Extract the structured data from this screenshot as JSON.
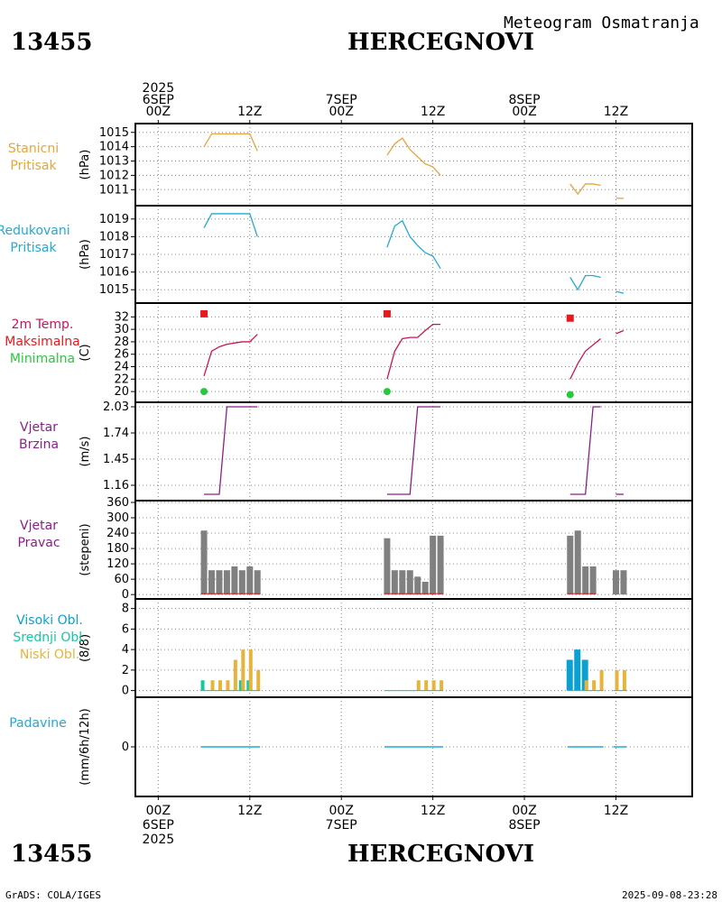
{
  "header": {
    "station_id": "13455",
    "station_name": "HERCEGNOVI",
    "title": "Meteogram Osmatranja"
  },
  "footer": {
    "credit": "GrADS: COLA/IGES",
    "timestamp": "2025-09-08-23:28"
  },
  "time_axis": {
    "top_labels": [
      {
        "lines": [
          "2025",
          "6SEP",
          "00Z"
        ],
        "hour": 0
      },
      {
        "lines": [
          "12Z"
        ],
        "hour": 12
      },
      {
        "lines": [
          "7SEP",
          "00Z"
        ],
        "hour": 24
      },
      {
        "lines": [
          "12Z"
        ],
        "hour": 36
      },
      {
        "lines": [
          "8SEP",
          "00Z"
        ],
        "hour": 48
      },
      {
        "lines": [
          "12Z"
        ],
        "hour": 60
      }
    ],
    "bottom_labels": [
      {
        "lines": [
          "00Z",
          "6SEP",
          "2025"
        ],
        "hour": 0
      },
      {
        "lines": [
          "12Z"
        ],
        "hour": 12
      },
      {
        "lines": [
          "00Z",
          "7SEP"
        ],
        "hour": 24
      },
      {
        "lines": [
          "12Z"
        ],
        "hour": 36
      },
      {
        "lines": [
          "00Z",
          "8SEP"
        ],
        "hour": 48
      },
      {
        "lines": [
          "12Z"
        ],
        "hour": 60
      }
    ],
    "range_hours": [
      -3,
      70
    ]
  },
  "colors": {
    "pressure": "#e6a53c",
    "reduced": "#22a9d6",
    "temp": "#c8145a",
    "max": "#e8191e",
    "min": "#28c83c",
    "wind": "#8c1e8c",
    "bars": "#808080",
    "high_cloud": "#0aa0d2",
    "mid_cloud": "#14c8a0",
    "low_cloud": "#e6b43c",
    "precip": "#22a9d6",
    "grid": "#888888"
  },
  "chart_data": [
    {
      "type": "line",
      "name": "pressure",
      "label": [
        "Stanicni",
        "Pritisak"
      ],
      "unit": "(hPa)",
      "ylim": [
        1010.2,
        1015.3
      ],
      "yticks": [
        1011,
        1012,
        1013,
        1014,
        1015
      ],
      "series": [
        {
          "name": "Stanicni Pritisak",
          "segments": [
            [
              [
                6,
                1014.0
              ],
              [
                7,
                1014.9
              ],
              [
                8,
                1014.9
              ],
              [
                9,
                1014.9
              ],
              [
                10,
                1014.9
              ],
              [
                11,
                1014.9
              ],
              [
                12,
                1014.9
              ],
              [
                13,
                1013.7
              ]
            ],
            [
              [
                30,
                1013.4
              ],
              [
                31,
                1014.2
              ],
              [
                32,
                1014.6
              ],
              [
                33,
                1013.8
              ],
              [
                34,
                1013.3
              ],
              [
                35,
                1012.8
              ],
              [
                36,
                1012.6
              ],
              [
                37,
                1012.0
              ]
            ],
            [
              [
                54,
                1011.4
              ],
              [
                55,
                1010.7
              ],
              [
                56,
                1011.4
              ],
              [
                57,
                1011.4
              ],
              [
                58,
                1011.3
              ]
            ],
            [
              [
                60,
                1010.4
              ],
              [
                61,
                1010.4
              ]
            ]
          ]
        }
      ]
    },
    {
      "type": "line",
      "name": "reduced_pressure",
      "label": [
        "Redukovani",
        "Pritisak"
      ],
      "unit": "(hPa)",
      "ylim": [
        1014.5,
        1019.5
      ],
      "yticks": [
        1015,
        1016,
        1017,
        1018,
        1019
      ],
      "series": [
        {
          "name": "Redukovani Pritisak",
          "segments": [
            [
              [
                6,
                1018.5
              ],
              [
                7,
                1019.3
              ],
              [
                8,
                1019.3
              ],
              [
                9,
                1019.3
              ],
              [
                10,
                1019.3
              ],
              [
                11,
                1019.3
              ],
              [
                12,
                1019.3
              ],
              [
                13,
                1018.0
              ]
            ],
            [
              [
                30,
                1017.4
              ],
              [
                31,
                1018.6
              ],
              [
                32,
                1018.9
              ],
              [
                33,
                1018.0
              ],
              [
                34,
                1017.5
              ],
              [
                35,
                1017.1
              ],
              [
                36,
                1016.9
              ],
              [
                37,
                1016.2
              ]
            ],
            [
              [
                54,
                1015.7
              ],
              [
                55,
                1015.0
              ],
              [
                56,
                1015.8
              ],
              [
                57,
                1015.8
              ],
              [
                58,
                1015.7
              ]
            ],
            [
              [
                60,
                1014.9
              ],
              [
                61,
                1014.8
              ]
            ]
          ]
        }
      ]
    },
    {
      "type": "line",
      "name": "temperature",
      "label": [
        "2m Temp.",
        "Maksimalna",
        "Minimalna"
      ],
      "unit": "(C)",
      "ylim": [
        19.0,
        33.5
      ],
      "yticks": [
        20,
        22,
        24,
        26,
        28,
        30,
        32
      ],
      "series": [
        {
          "name": "2m Temp.",
          "segments": [
            [
              [
                6,
                22.5
              ],
              [
                7,
                26.5
              ],
              [
                8,
                27.2
              ],
              [
                9,
                27.6
              ],
              [
                10,
                27.8
              ],
              [
                11,
                28.0
              ],
              [
                12,
                28.0
              ],
              [
                13,
                29.2
              ]
            ],
            [
              [
                30,
                22.0
              ],
              [
                31,
                26.5
              ],
              [
                32,
                28.5
              ],
              [
                33,
                28.7
              ],
              [
                34,
                28.7
              ],
              [
                35,
                29.8
              ],
              [
                36,
                30.8
              ],
              [
                37,
                30.8
              ]
            ],
            [
              [
                54,
                22.0
              ],
              [
                55,
                24.5
              ],
              [
                56,
                26.5
              ],
              [
                57,
                27.5
              ],
              [
                58,
                28.5
              ]
            ],
            [
              [
                60,
                29.3
              ],
              [
                61,
                29.8
              ]
            ]
          ]
        },
        {
          "name": "Maksimalna",
          "points": [
            [
              6,
              32.5
            ],
            [
              30,
              32.5
            ],
            [
              54,
              31.8
            ]
          ]
        },
        {
          "name": "Minimalna",
          "points": [
            [
              6,
              20.0
            ],
            [
              30,
              20.0
            ],
            [
              54,
              19.5
            ]
          ]
        }
      ]
    },
    {
      "type": "line",
      "name": "wind_speed",
      "label": [
        "Vjetar",
        "Brzina"
      ],
      "unit": "(m/s)",
      "ylim": [
        1.06,
        2.03
      ],
      "yticks": [
        1.16,
        1.45,
        1.74,
        2.03
      ],
      "tick_labels": [
        "1.16",
        "1.45",
        "1.74",
        "2.03"
      ],
      "series": [
        {
          "name": "Vjetar Brzina",
          "segments": [
            [
              [
                6,
                1.06
              ],
              [
                8,
                1.06
              ],
              [
                9,
                2.03
              ],
              [
                10,
                2.03
              ],
              [
                13,
                2.03
              ]
            ],
            [
              [
                30,
                1.06
              ],
              [
                33,
                1.06
              ],
              [
                34,
                2.03
              ],
              [
                37,
                2.03
              ]
            ],
            [
              [
                54,
                1.06
              ],
              [
                56,
                1.06
              ],
              [
                57,
                2.03
              ],
              [
                58,
                2.03
              ]
            ],
            [
              [
                60,
                1.06
              ],
              [
                61,
                1.06
              ]
            ]
          ]
        }
      ]
    },
    {
      "type": "bar",
      "name": "wind_direction",
      "label": [
        "Vjetar",
        "Pravac"
      ],
      "unit": "(stepeni)",
      "ylim": [
        -10,
        360
      ],
      "yticks": [
        0,
        60,
        120,
        180,
        240,
        300,
        360
      ],
      "x": [
        6,
        7,
        8,
        9,
        10,
        11,
        12,
        13,
        30,
        31,
        32,
        33,
        34,
        35,
        36,
        37,
        54,
        55,
        56,
        57,
        60,
        61
      ],
      "values": [
        250,
        95,
        95,
        95,
        110,
        95,
        110,
        95,
        220,
        95,
        95,
        95,
        70,
        50,
        230,
        230,
        230,
        250,
        110,
        110,
        95,
        95
      ]
    },
    {
      "type": "bar",
      "name": "clouds",
      "label": [
        "Visoki Obl.",
        "Srednji Obl.",
        "Niski Obl."
      ],
      "unit": "(8/8)",
      "ylim": [
        -0.3,
        8.5
      ],
      "yticks": [
        0,
        2,
        4,
        6,
        8
      ],
      "series": [
        {
          "name": "Visoki Obl.",
          "x": [
            54,
            55,
            56
          ],
          "values": [
            3,
            4,
            3
          ]
        },
        {
          "name": "Srednji Obl.",
          "x": [
            6,
            11,
            12
          ],
          "values": [
            1,
            1,
            1
          ]
        },
        {
          "name": "Niski Obl.",
          "x": [
            7,
            8,
            9,
            10,
            11,
            12,
            13,
            34,
            35,
            36,
            37,
            56,
            57,
            58,
            60,
            61
          ],
          "values": [
            1,
            1,
            1,
            3,
            4,
            4,
            2,
            1,
            1,
            1,
            1,
            1,
            1,
            2,
            2,
            2
          ]
        }
      ]
    },
    {
      "type": "bar",
      "name": "precipitation",
      "label": [
        "Padavine"
      ],
      "unit": "(mm/6h/12h)",
      "ylim": [
        -1,
        1
      ],
      "yticks": [
        0
      ],
      "segments": [
        [
          6,
          13
        ],
        [
          30,
          37
        ],
        [
          54,
          58
        ],
        [
          60,
          61
        ]
      ],
      "values": [
        0,
        0,
        0,
        0
      ]
    }
  ]
}
